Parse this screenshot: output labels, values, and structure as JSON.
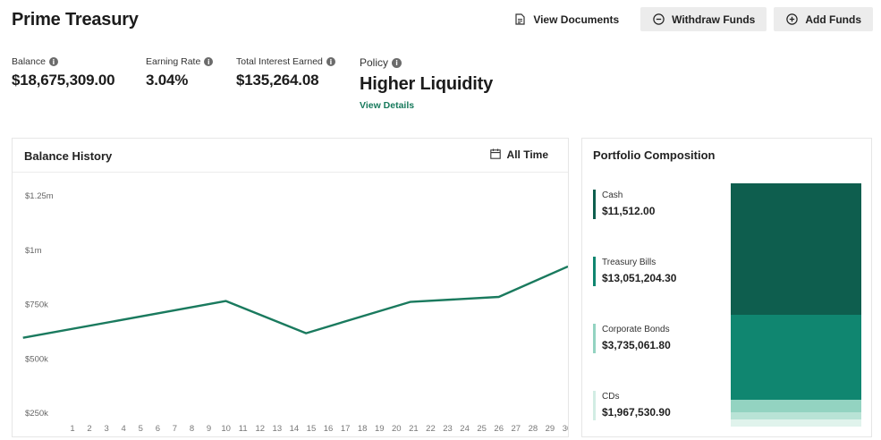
{
  "header": {
    "title": "Prime Treasury"
  },
  "toolbar": {
    "view_documents": "View Documents",
    "withdraw_funds": "Withdraw Funds",
    "add_funds": "Add Funds"
  },
  "stats": {
    "balance": {
      "label": "Balance",
      "value": "$18,675,309.00"
    },
    "earning_rate": {
      "label": "Earning Rate",
      "value": "3.04%"
    },
    "total_interest": {
      "label": "Total Interest Earned",
      "value": "$135,264.08"
    },
    "policy": {
      "label": "Policy",
      "value": "Higher Liquidity",
      "link": "View Details"
    }
  },
  "balance_history": {
    "title": "Balance History",
    "range_label": "All Time"
  },
  "portfolio": {
    "title": "Portfolio Composition",
    "items": [
      {
        "name": "Cash",
        "value": "$11,512.00",
        "color": "#0e5e4e"
      },
      {
        "name": "Treasury Bills",
        "value": "$13,051,204.30",
        "color": "#108670"
      },
      {
        "name": "Corporate Bonds",
        "value": "$3,735,061.80",
        "color": "#93d3c1"
      },
      {
        "name": "CDs",
        "value": "$1,967,530.90",
        "color": "#d2ede4"
      }
    ],
    "stack_segments": [
      {
        "name": "Cash",
        "fraction": 0.54,
        "color": "#0e5e4e"
      },
      {
        "name": "Treasury Bills",
        "fraction": 0.35,
        "color": "#108670"
      },
      {
        "name": "Corporate Bonds",
        "fraction": 0.05,
        "color": "#93d3c1"
      },
      {
        "name": "CDs",
        "fraction": 0.03,
        "color": "#b9e3d6"
      },
      {
        "name": "Other",
        "fraction": 0.03,
        "color": "#e0f3ec"
      }
    ]
  },
  "chart_data": {
    "type": "line",
    "title": "Balance History",
    "color": "#1a7a5e",
    "y_ticks": [
      {
        "value": 250000,
        "label": "$250k"
      },
      {
        "value": 500000,
        "label": "$500k"
      },
      {
        "value": 750000,
        "label": "$750k"
      },
      {
        "value": 1000000,
        "label": "$1m"
      },
      {
        "value": 1250000,
        "label": "$1.25m"
      }
    ],
    "ylim": [
      250000,
      1250000
    ],
    "x_ticks": [
      1,
      2,
      3,
      4,
      5,
      6,
      7,
      8,
      9,
      10,
      11,
      12,
      13,
      14,
      15,
      16,
      17,
      18,
      19,
      20,
      21,
      22,
      23,
      24,
      25,
      26,
      27,
      28,
      29,
      30
    ],
    "xlim": [
      -1.9,
      31.1
    ],
    "series": [
      {
        "x": [
          -1.9,
          10,
          14.7,
          20.8,
          26,
          31.1
        ],
        "y": [
          597000,
          766000,
          618000,
          762000,
          785000,
          925000
        ]
      }
    ]
  }
}
